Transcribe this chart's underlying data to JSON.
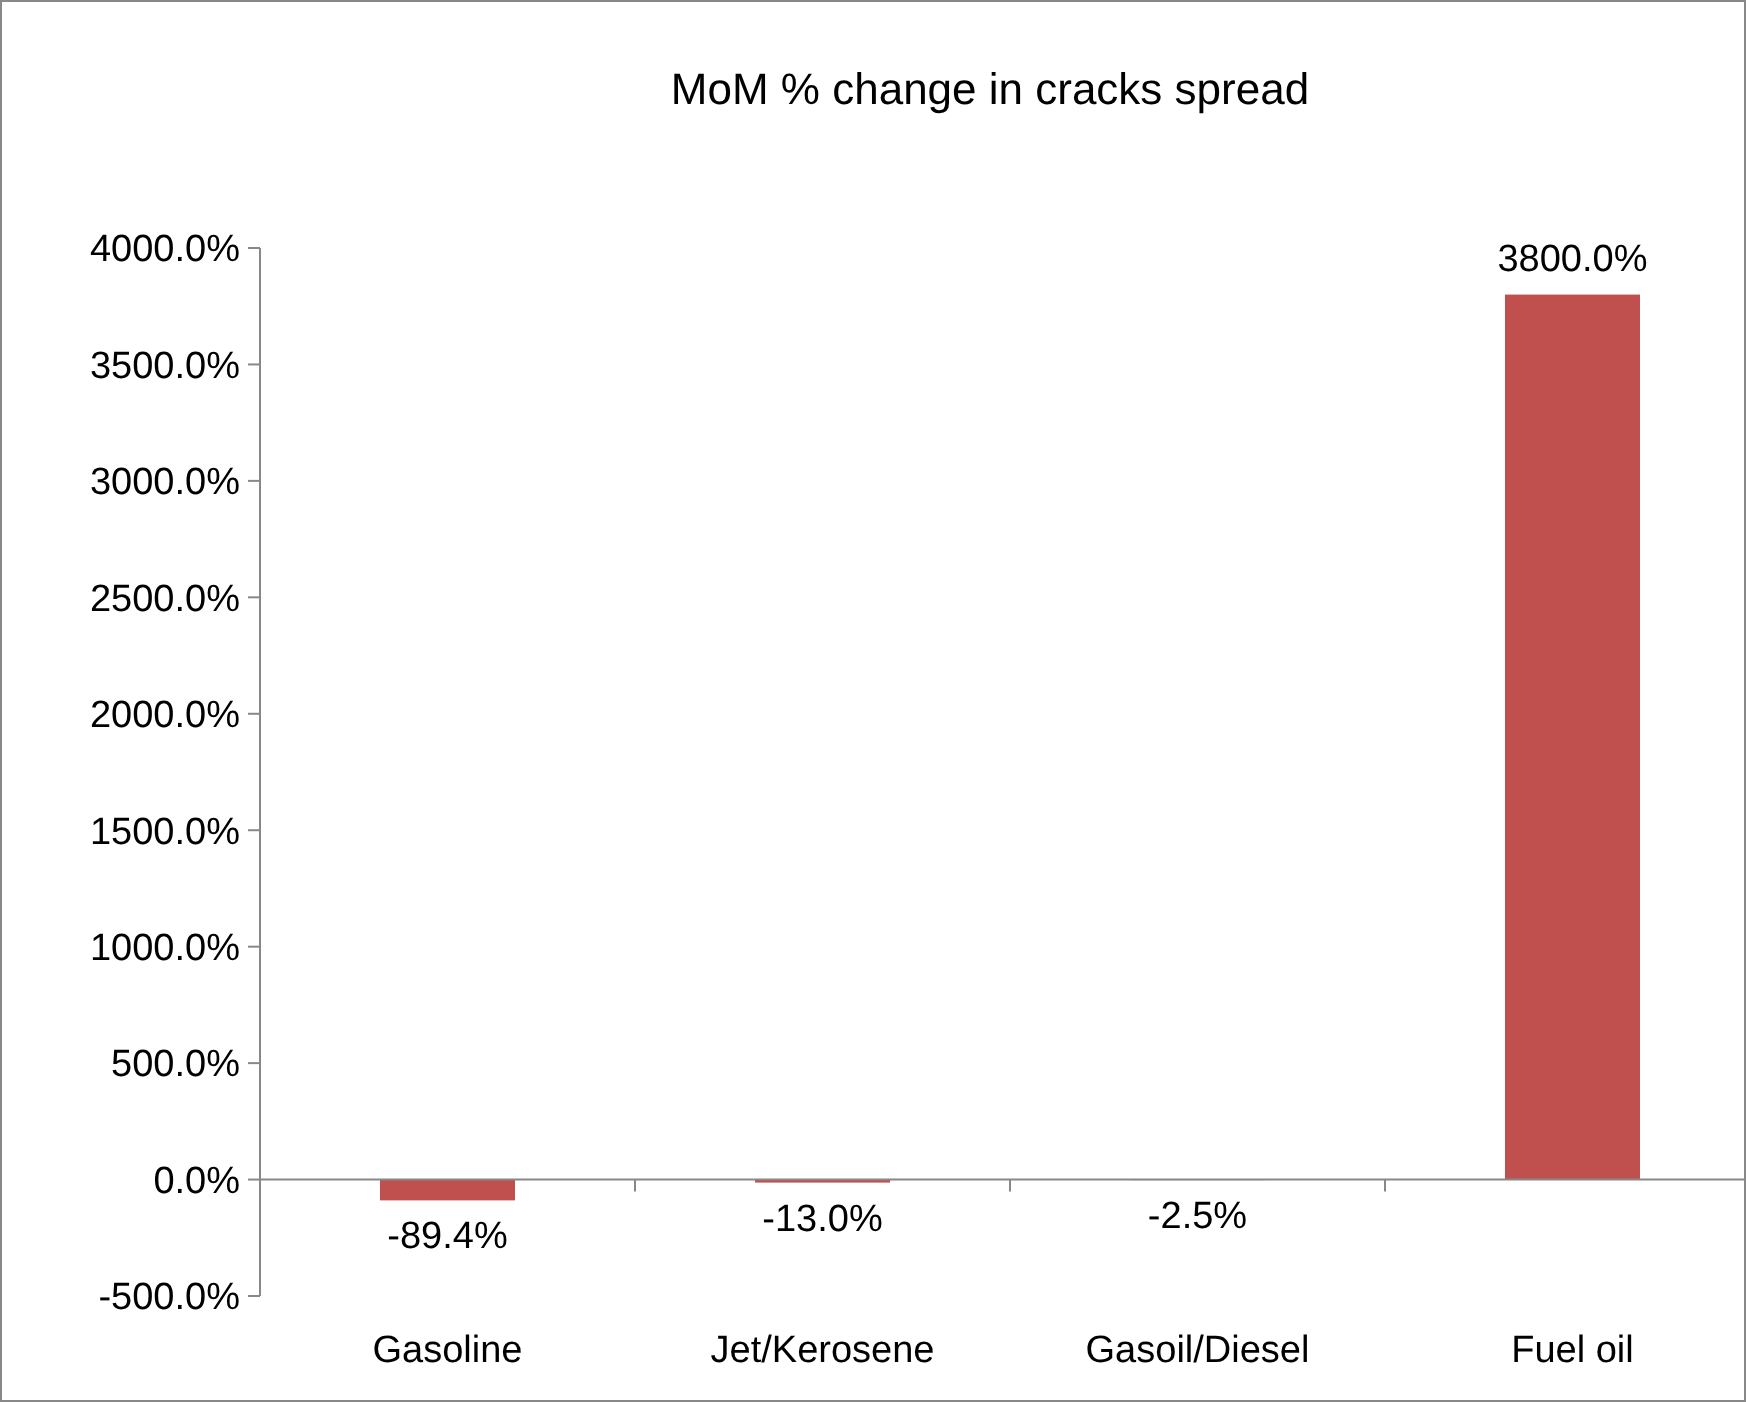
{
  "chart_data": {
    "type": "bar",
    "title": "MoM % change in cracks spread",
    "categories": [
      "Gasoline",
      "Jet/Kerosene",
      "Gasoil/Diesel",
      "Fuel oil"
    ],
    "values": [
      -89.4,
      -13.0,
      -2.5,
      3800.0
    ],
    "color": "#c0504d",
    "value_labels": [
      "-89.4%",
      "-13.0%",
      "-2.5%",
      "3800.0%"
    ],
    "ylim": [
      -500,
      4000
    ],
    "yticks": [
      {
        "value": -500,
        "label": "-500.0%"
      },
      {
        "value": 0,
        "label": "0.0%"
      },
      {
        "value": 500,
        "label": "500.0%"
      },
      {
        "value": 1000,
        "label": "1000.0%"
      },
      {
        "value": 1500,
        "label": "1500.0%"
      },
      {
        "value": 2000,
        "label": "2000.0%"
      },
      {
        "value": 2500,
        "label": "2500.0%"
      },
      {
        "value": 3000,
        "label": "3000.0%"
      },
      {
        "value": 3500,
        "label": "3500.0%"
      },
      {
        "value": 4000,
        "label": "4000.0%"
      }
    ],
    "ylabel": null
  }
}
